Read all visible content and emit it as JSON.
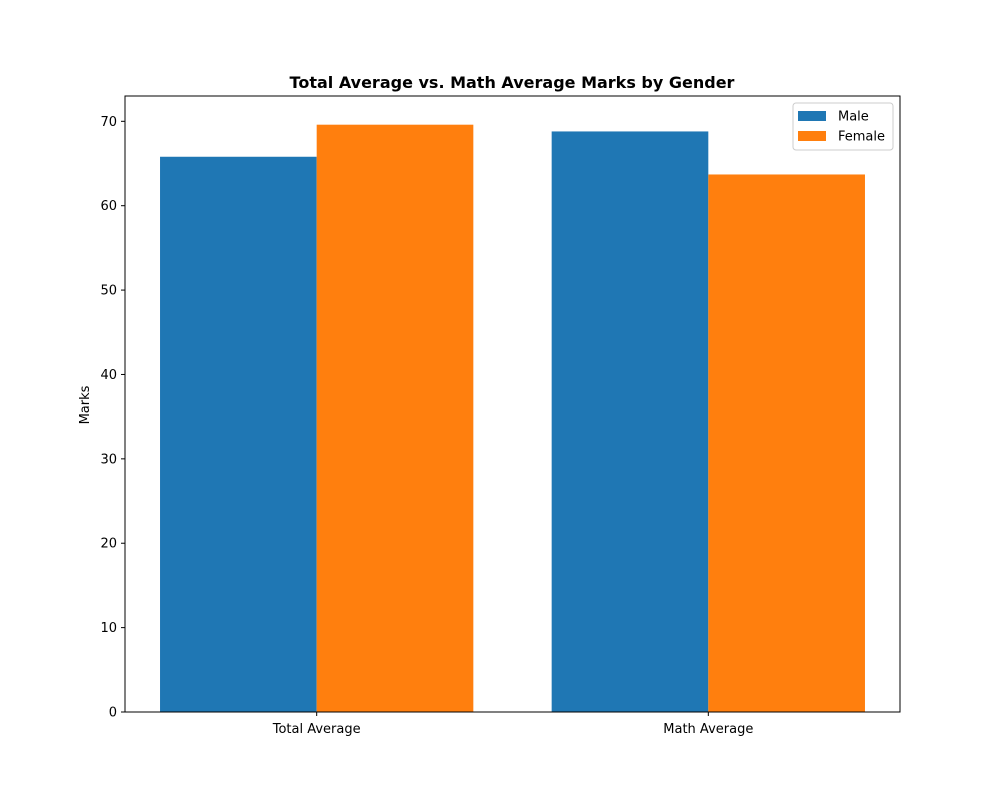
{
  "chart_data": {
    "type": "bar",
    "title": "Total Average vs. Math Average Marks by Gender",
    "xlabel": "",
    "ylabel": "Marks",
    "categories": [
      "Total Average",
      "Math Average"
    ],
    "series": [
      {
        "name": "Male",
        "color": "#1f77b4",
        "values": [
          65.8,
          68.8
        ]
      },
      {
        "name": "Female",
        "color": "#ff7f0e",
        "values": [
          69.6,
          63.7
        ]
      }
    ],
    "ylim": [
      0,
      73
    ],
    "yticks": [
      0,
      10,
      20,
      30,
      40,
      50,
      60,
      70
    ],
    "grid": false,
    "legend_position": "top-right"
  }
}
